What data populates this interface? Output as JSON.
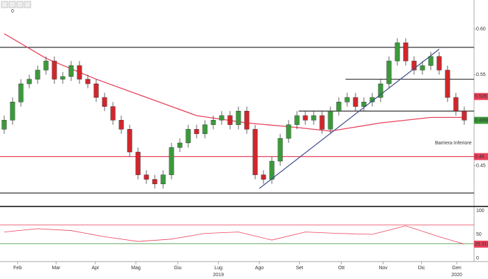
{
  "toolbar_label": "0",
  "chart_data": {
    "type": "candlestick",
    "open": [
      0.49,
      0.5,
      0.52,
      0.54,
      0.545,
      0.555,
      0.565,
      0.545,
      0.548,
      0.56,
      0.545,
      0.54,
      0.525,
      0.515,
      0.5,
      0.49,
      0.465,
      0.44,
      0.435,
      0.43,
      0.44,
      0.47,
      0.475,
      0.49,
      0.485,
      0.495,
      0.5,
      0.505,
      0.495,
      0.51,
      0.49,
      0.44,
      0.435,
      0.455,
      0.48,
      0.495,
      0.505,
      0.5,
      0.505,
      0.49,
      0.51,
      0.52,
      0.525,
      0.515,
      0.52,
      0.525,
      0.54,
      0.565,
      0.585,
      0.565,
      0.555,
      0.56,
      0.57,
      0.555,
      0.525,
      0.51
    ],
    "high": [
      0.505,
      0.525,
      0.545,
      0.55,
      0.56,
      0.57,
      0.57,
      0.553,
      0.565,
      0.565,
      0.55,
      0.545,
      0.53,
      0.52,
      0.505,
      0.495,
      0.47,
      0.445,
      0.44,
      0.445,
      0.475,
      0.48,
      0.495,
      0.495,
      0.5,
      0.505,
      0.51,
      0.51,
      0.515,
      0.515,
      0.495,
      0.445,
      0.46,
      0.485,
      0.5,
      0.51,
      0.51,
      0.51,
      0.51,
      0.515,
      0.525,
      0.53,
      0.53,
      0.525,
      0.53,
      0.545,
      0.57,
      0.59,
      0.59,
      0.57,
      0.565,
      0.575,
      0.575,
      0.56,
      0.53,
      0.515
    ],
    "low": [
      0.485,
      0.495,
      0.515,
      0.535,
      0.54,
      0.55,
      0.54,
      0.54,
      0.543,
      0.54,
      0.535,
      0.52,
      0.51,
      0.495,
      0.485,
      0.46,
      0.435,
      0.43,
      0.425,
      0.425,
      0.435,
      0.465,
      0.47,
      0.48,
      0.48,
      0.49,
      0.495,
      0.49,
      0.49,
      0.485,
      0.435,
      0.43,
      0.43,
      0.45,
      0.475,
      0.49,
      0.495,
      0.495,
      0.485,
      0.485,
      0.505,
      0.515,
      0.51,
      0.51,
      0.515,
      0.52,
      0.535,
      0.56,
      0.56,
      0.55,
      0.55,
      0.555,
      0.55,
      0.52,
      0.505,
      0.495
    ],
    "close": [
      0.5,
      0.52,
      0.54,
      0.545,
      0.555,
      0.565,
      0.545,
      0.548,
      0.56,
      0.545,
      0.54,
      0.525,
      0.515,
      0.5,
      0.49,
      0.465,
      0.44,
      0.435,
      0.43,
      0.44,
      0.47,
      0.475,
      0.49,
      0.485,
      0.495,
      0.5,
      0.505,
      0.495,
      0.51,
      0.49,
      0.44,
      0.435,
      0.455,
      0.48,
      0.495,
      0.505,
      0.5,
      0.505,
      0.49,
      0.51,
      0.52,
      0.525,
      0.515,
      0.52,
      0.525,
      0.54,
      0.565,
      0.585,
      0.565,
      0.555,
      0.56,
      0.57,
      0.555,
      0.525,
      0.51,
      0.5
    ],
    "up_color": "#3a9a3a",
    "down_color": "#d0262c",
    "moving_average": {
      "color": "#e8415a",
      "x": [
        0,
        5,
        11,
        17,
        23,
        29,
        35,
        39,
        45,
        51,
        55
      ],
      "values": [
        0.595,
        0.568,
        0.545,
        0.525,
        0.505,
        0.497,
        0.492,
        0.488,
        0.497,
        0.503,
        0.503
      ]
    },
    "levels": [
      {
        "value": 0.58,
        "color": "#333333",
        "from": -0.5
      },
      {
        "value": 0.545,
        "color": "#333333",
        "from": 40.8
      },
      {
        "value": 0.51,
        "color": "#333333",
        "from": 35.2
      },
      {
        "value": 0.46,
        "color": "#e8415a",
        "from": -0.5
      },
      {
        "value": 0.42,
        "color": "#333333",
        "from": -0.5
      }
    ],
    "trendline": {
      "color": "#3b4a8a",
      "x": [
        30.5,
        52
      ],
      "values": [
        0.425,
        0.578
      ]
    },
    "annotation": {
      "text": "Barriera Inferiore",
      "x": 51.5,
      "y": 0.475,
      "color": "#e8232b"
    },
    "price_tags": [
      {
        "value": 0.526,
        "color": "#e8415a"
      },
      {
        "value": 0.4998,
        "color": "#3a9a3a"
      },
      {
        "value": 0.46,
        "color": "#e8415a"
      }
    ],
    "xlim": [
      -0.5,
      56.17
    ],
    "ylim": [
      0.406,
      0.632
    ],
    "yticks": [
      {
        "value": 0.6,
        "label": "0.60"
      },
      0.55,
      0.45
    ],
    "xticks": [
      {
        "value": 1.6,
        "label": "Feb"
      },
      {
        "value": 6.2,
        "label": "Mar"
      },
      {
        "value": 10.9,
        "label": "Apr"
      },
      {
        "value": 15.75,
        "label": "Mag"
      },
      {
        "value": 20.75,
        "label": "Giu"
      },
      {
        "value": 25.6,
        "label": "Lug"
      },
      {
        "value": 30.5,
        "label": "Ago"
      },
      {
        "value": 35.3,
        "label": "Set"
      },
      {
        "value": 40.3,
        "label": "Ott"
      },
      {
        "value": 45.3,
        "label": "Nov"
      },
      {
        "value": 49.9,
        "label": "Dic"
      },
      {
        "value": 54.1,
        "label": "Gen"
      }
    ],
    "years": [
      {
        "value": 25.6,
        "label": "2019"
      },
      {
        "value": 54.1,
        "label": "2020"
      }
    ],
    "rsi": {
      "color": "#e8415a",
      "x": [
        0,
        4,
        8,
        12,
        16,
        20,
        24,
        28,
        32,
        36,
        40,
        44,
        48,
        52,
        55
      ],
      "values": [
        55,
        62,
        58,
        45,
        35,
        40,
        52,
        55,
        38,
        55,
        52,
        50,
        68,
        45,
        29.3109
      ],
      "ylim": [
        0,
        100
      ],
      "yticks": [
        100,
        50,
        0
      ],
      "upper": 70,
      "upper_color": "#e8415a",
      "lower": 30,
      "lower_color": "#3a9a3a",
      "last": 29.3109
    }
  }
}
